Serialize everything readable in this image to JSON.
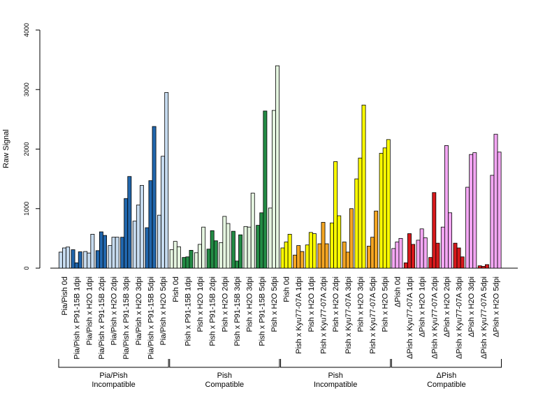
{
  "chart_data": {
    "type": "bar",
    "title": "",
    "xlabel": "",
    "ylabel": "Raw Signal",
    "ylim": [
      0,
      4000
    ],
    "yticks": [
      0,
      1000,
      2000,
      3000,
      4000
    ],
    "grid": false,
    "legend": "none",
    "categories": [
      {
        "label": "Pia/Pish 0d",
        "color": "#c6dbef",
        "values": [
          270,
          340,
          355
        ]
      },
      {
        "label": "Pia/Pish x P91-15B 1dpi",
        "color": "#2166ac",
        "values": [
          310,
          90,
          275
        ]
      },
      {
        "label": "Pia/Pish x H2O 1dpi",
        "color": "#c6dbef",
        "values": [
          280,
          255,
          570
        ]
      },
      {
        "label": "Pia/Pish x P91-15B 2dpi",
        "color": "#2166ac",
        "values": [
          295,
          610,
          550
        ]
      },
      {
        "label": "Pia/Pish x H2O 2dpi",
        "color": "#c6dbef",
        "values": [
          380,
          520,
          520
        ]
      },
      {
        "label": "Pia/Pish x P91-15B 3dpi",
        "color": "#2166ac",
        "values": [
          520,
          1170,
          1540
        ]
      },
      {
        "label": "Pia/Pish x H2O 3dpi",
        "color": "#c6dbef",
        "values": [
          790,
          1060,
          1390
        ]
      },
      {
        "label": "Pia/Pish x P91-15B 5dpi",
        "color": "#2166ac",
        "values": [
          680,
          1470,
          2380
        ]
      },
      {
        "label": "Pia/Pish x H2O 5dpi",
        "color": "#c6dbef",
        "values": [
          890,
          1880,
          2950
        ]
      },
      {
        "label": "Pish 0d",
        "color": "#e5f5e0",
        "values": [
          310,
          450,
          360
        ]
      },
      {
        "label": "Pish x P91-15B 1dpi",
        "color": "#238b45",
        "values": [
          180,
          190,
          300
        ]
      },
      {
        "label": "Pish x H2O 1dpi",
        "color": "#e5f5e0",
        "values": [
          260,
          400,
          690
        ]
      },
      {
        "label": "Pish x P91-15B 2dpi",
        "color": "#238b45",
        "values": [
          320,
          630,
          460
        ]
      },
      {
        "label": "Pish x H2O 2dpi",
        "color": "#e5f5e0",
        "values": [
          430,
          870,
          750
        ]
      },
      {
        "label": "Pish x P91-15B 3dpi",
        "color": "#238b45",
        "values": [
          620,
          120,
          560
        ]
      },
      {
        "label": "Pish x H2O 3dpi",
        "color": "#e5f5e0",
        "values": [
          700,
          690,
          1260
        ]
      },
      {
        "label": "Pish x P91-15B 5dpi",
        "color": "#238b45",
        "values": [
          720,
          930,
          2640
        ]
      },
      {
        "label": "Pish x H2O 5dpi",
        "color": "#e5f5e0",
        "values": [
          1010,
          2650,
          3400
        ]
      },
      {
        "label": "Pish 0d",
        "color": "#ffff00",
        "values": [
          340,
          440,
          570
        ]
      },
      {
        "label": "Pish x Kyu77-07A 1dpi",
        "color": "#f5a623",
        "values": [
          220,
          380,
          280
        ]
      },
      {
        "label": "Pish x H2O 1dpi",
        "color": "#ffff00",
        "values": [
          390,
          600,
          580
        ]
      },
      {
        "label": "Pish x Kyu77-07A 2dpi",
        "color": "#f5a623",
        "values": [
          410,
          770,
          410
        ]
      },
      {
        "label": "Pish x H2O 2dpi",
        "color": "#ffff00",
        "values": [
          760,
          1790,
          880
        ]
      },
      {
        "label": "Pish x Kyu77-07A 3dpi",
        "color": "#f5a623",
        "values": [
          440,
          270,
          1000
        ]
      },
      {
        "label": "Pish x H2O 3dpi",
        "color": "#ffff00",
        "values": [
          1500,
          1850,
          2740
        ]
      },
      {
        "label": "Pish x Kyu77-07A 5dpi",
        "color": "#f5a623",
        "values": [
          370,
          520,
          960
        ]
      },
      {
        "label": "Pish x H2O 5dpi",
        "color": "#ffff00",
        "values": [
          1930,
          2020,
          2160
        ]
      },
      {
        "label": "ΔPish 0d",
        "color": "#f4a7f4",
        "values": [
          330,
          440,
          500
        ]
      },
      {
        "label": "ΔPish x Kyu77-07A 1dpi",
        "color": "#d7191c",
        "values": [
          90,
          580,
          400
        ]
      },
      {
        "label": "ΔPish x H2O 1dpi",
        "color": "#f4a7f4",
        "values": [
          470,
          660,
          510
        ]
      },
      {
        "label": "ΔPish x Kyu77-07A 2dpi",
        "color": "#d7191c",
        "values": [
          180,
          1270,
          420
        ]
      },
      {
        "label": "ΔPish x H2O 2dpi",
        "color": "#f4a7f4",
        "values": [
          690,
          2060,
          930
        ]
      },
      {
        "label": "ΔPish x Kyu77-07A 3dpi",
        "color": "#d7191c",
        "values": [
          420,
          340,
          190
        ]
      },
      {
        "label": "ΔPish x H2O 3dpi",
        "color": "#f4a7f4",
        "values": [
          1360,
          1910,
          1940
        ]
      },
      {
        "label": "ΔPish x Kyu77-07A 5dpi",
        "color": "#d7191c",
        "values": [
          40,
          30,
          60
        ]
      },
      {
        "label": "ΔPish x H2O 5dpi",
        "color": "#f4a7f4",
        "values": [
          1560,
          2250,
          1950
        ]
      }
    ],
    "groups": [
      {
        "line1": "Pia/Pish",
        "line2": "Incompatible",
        "start_index": 0,
        "end_index": 8
      },
      {
        "line1": "Pish",
        "line2": "Compatible",
        "start_index": 9,
        "end_index": 17
      },
      {
        "line1": "Pish",
        "line2": "Incompatible",
        "start_index": 18,
        "end_index": 26
      },
      {
        "line1": "ΔPish",
        "line2": "Compatible",
        "start_index": 27,
        "end_index": 35
      }
    ]
  }
}
